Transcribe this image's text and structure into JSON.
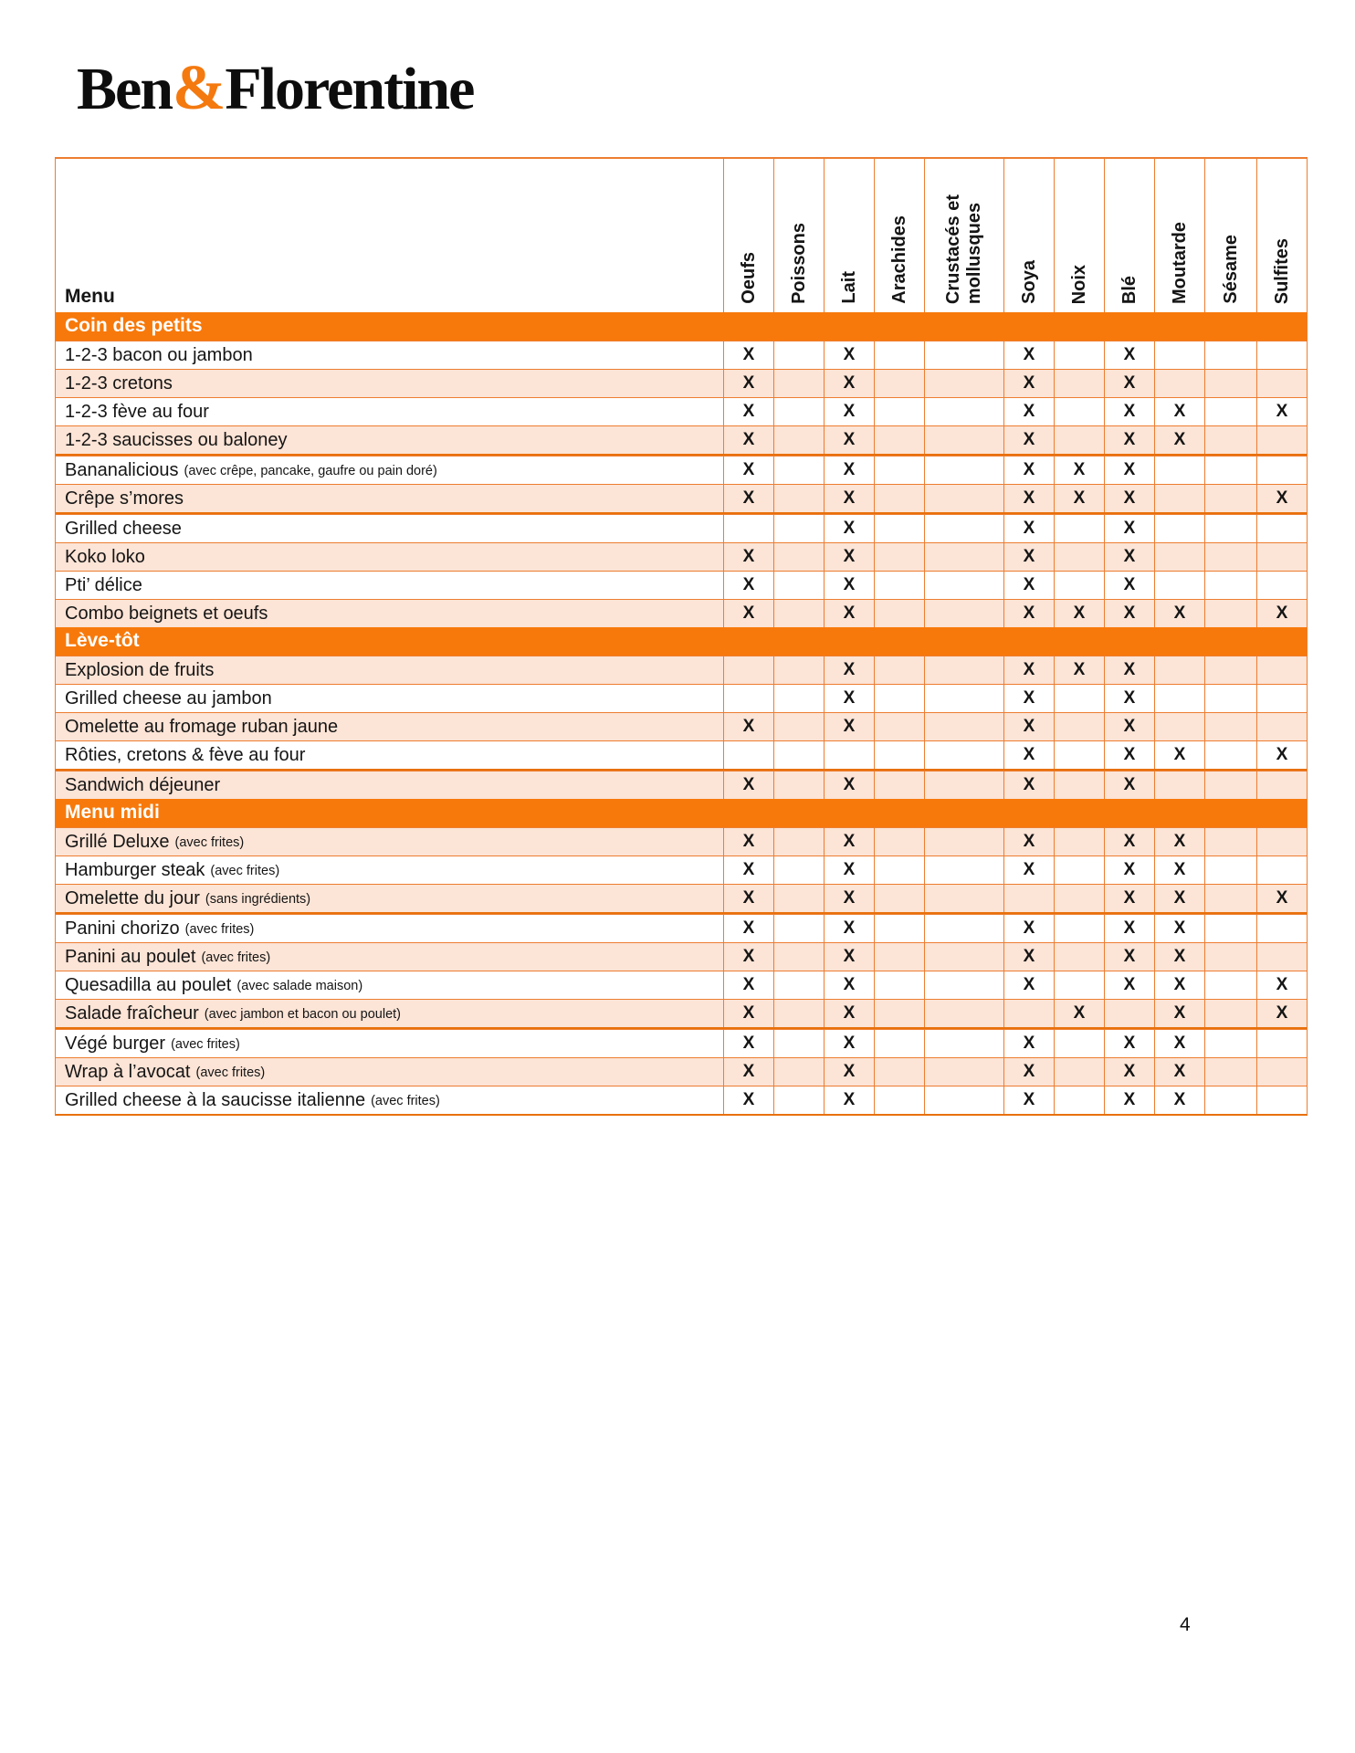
{
  "logo": {
    "part1": "Ben",
    "amp": "&",
    "part2": "Florentine"
  },
  "page_number": "4",
  "colors": {
    "section_bar_orange": "#f7790b",
    "grid_border_orange": "#ed7d31",
    "thick_border_orange": "#e8700a",
    "banded_row_peach": "#fce4d6",
    "logo_ampersand_orange": "#f4790f",
    "text_black": "#151515",
    "section_text_white": "#ffffff"
  },
  "table": {
    "menu_header": "Menu",
    "columns": [
      "Oeufs",
      "Poissons",
      "Lait",
      "Arachides",
      "Crustacés et\nmollusques",
      "Soya",
      "Noix",
      "Blé",
      "Moutarde",
      "Sésame",
      "Sulfites"
    ],
    "mark": "X",
    "sections": [
      {
        "title": "Coin des petits",
        "first_row_shaded": false,
        "rows": [
          {
            "name": "1-2-3 bacon ou jambon",
            "note": "",
            "allergens": [
              1,
              0,
              1,
              0,
              0,
              1,
              0,
              1,
              0,
              0,
              0
            ]
          },
          {
            "name": "1-2-3 cretons",
            "note": "",
            "allergens": [
              1,
              0,
              1,
              0,
              0,
              1,
              0,
              1,
              0,
              0,
              0
            ]
          },
          {
            "name": "1-2-3 fève au four",
            "note": "",
            "allergens": [
              1,
              0,
              1,
              0,
              0,
              1,
              0,
              1,
              1,
              0,
              1
            ]
          },
          {
            "name": "1-2-3 saucisses ou baloney",
            "note": "",
            "allergens": [
              1,
              0,
              1,
              0,
              0,
              1,
              0,
              1,
              1,
              0,
              0
            ],
            "thick_bottom": true
          },
          {
            "name": "Bananalicious",
            "note": "(avec crêpe, pancake, gaufre ou pain doré)",
            "allergens": [
              1,
              0,
              1,
              0,
              0,
              1,
              1,
              1,
              0,
              0,
              0
            ]
          },
          {
            "name": "Crêpe s’mores",
            "note": "",
            "allergens": [
              1,
              0,
              1,
              0,
              0,
              1,
              1,
              1,
              0,
              0,
              1
            ],
            "thick_bottom": true
          },
          {
            "name": "Grilled cheese",
            "note": "",
            "allergens": [
              0,
              0,
              1,
              0,
              0,
              1,
              0,
              1,
              0,
              0,
              0
            ]
          },
          {
            "name": "Koko loko",
            "note": "",
            "allergens": [
              1,
              0,
              1,
              0,
              0,
              1,
              0,
              1,
              0,
              0,
              0
            ]
          },
          {
            "name": "Pti’ délice",
            "note": "",
            "allergens": [
              1,
              0,
              1,
              0,
              0,
              1,
              0,
              1,
              0,
              0,
              0
            ]
          },
          {
            "name": "Combo beignets et oeufs",
            "note": "",
            "allergens": [
              1,
              0,
              1,
              0,
              0,
              1,
              1,
              1,
              1,
              0,
              1
            ]
          }
        ]
      },
      {
        "title": "Lève-tôt",
        "first_row_shaded": true,
        "rows": [
          {
            "name": "Explosion de fruits",
            "note": "",
            "allergens": [
              0,
              0,
              1,
              0,
              0,
              1,
              1,
              1,
              0,
              0,
              0
            ]
          },
          {
            "name": "Grilled cheese au jambon",
            "note": "",
            "allergens": [
              0,
              0,
              1,
              0,
              0,
              1,
              0,
              1,
              0,
              0,
              0
            ]
          },
          {
            "name": "Omelette au fromage ruban jaune",
            "note": "",
            "allergens": [
              1,
              0,
              1,
              0,
              0,
              1,
              0,
              1,
              0,
              0,
              0
            ]
          },
          {
            "name": "Rôties, cretons & fève au four",
            "note": "",
            "allergens": [
              0,
              0,
              0,
              0,
              0,
              1,
              0,
              1,
              1,
              0,
              1
            ],
            "thick_bottom": true
          },
          {
            "name": "Sandwich déjeuner",
            "note": "",
            "allergens": [
              1,
              0,
              1,
              0,
              0,
              1,
              0,
              1,
              0,
              0,
              0
            ]
          }
        ]
      },
      {
        "title": "Menu midi",
        "first_row_shaded": true,
        "rows": [
          {
            "name": "Grillé Deluxe",
            "note": "(avec frites)",
            "allergens": [
              1,
              0,
              1,
              0,
              0,
              1,
              0,
              1,
              1,
              0,
              0
            ]
          },
          {
            "name": "Hamburger steak",
            "note": "(avec frites)",
            "allergens": [
              1,
              0,
              1,
              0,
              0,
              1,
              0,
              1,
              1,
              0,
              0
            ]
          },
          {
            "name": "Omelette du jour",
            "note": "(sans ingrédients)",
            "allergens": [
              1,
              0,
              1,
              0,
              0,
              0,
              0,
              1,
              1,
              0,
              1
            ],
            "thick_bottom": true
          },
          {
            "name": "Panini chorizo",
            "note": "(avec frites)",
            "allergens": [
              1,
              0,
              1,
              0,
              0,
              1,
              0,
              1,
              1,
              0,
              0
            ]
          },
          {
            "name": "Panini au poulet",
            "note": "(avec frites)",
            "allergens": [
              1,
              0,
              1,
              0,
              0,
              1,
              0,
              1,
              1,
              0,
              0
            ]
          },
          {
            "name": "Quesadilla au poulet",
            "note": "(avec salade maison)",
            "allergens": [
              1,
              0,
              1,
              0,
              0,
              1,
              0,
              1,
              1,
              0,
              1
            ]
          },
          {
            "name": "Salade fraîcheur",
            "note": "(avec jambon et bacon ou poulet)",
            "allergens": [
              1,
              0,
              1,
              0,
              0,
              0,
              1,
              0,
              1,
              0,
              1
            ],
            "thick_bottom": true
          },
          {
            "name": "Végé burger",
            "note": "(avec frites)",
            "allergens": [
              1,
              0,
              1,
              0,
              0,
              1,
              0,
              1,
              1,
              0,
              0
            ]
          },
          {
            "name": "Wrap à l’avocat",
            "note": "(avec frites)",
            "allergens": [
              1,
              0,
              1,
              0,
              0,
              1,
              0,
              1,
              1,
              0,
              0
            ]
          },
          {
            "name": "Grilled cheese à la saucisse italienne",
            "note": "(avec frites)",
            "allergens": [
              1,
              0,
              1,
              0,
              0,
              1,
              0,
              1,
              1,
              0,
              0
            ]
          }
        ]
      }
    ]
  }
}
